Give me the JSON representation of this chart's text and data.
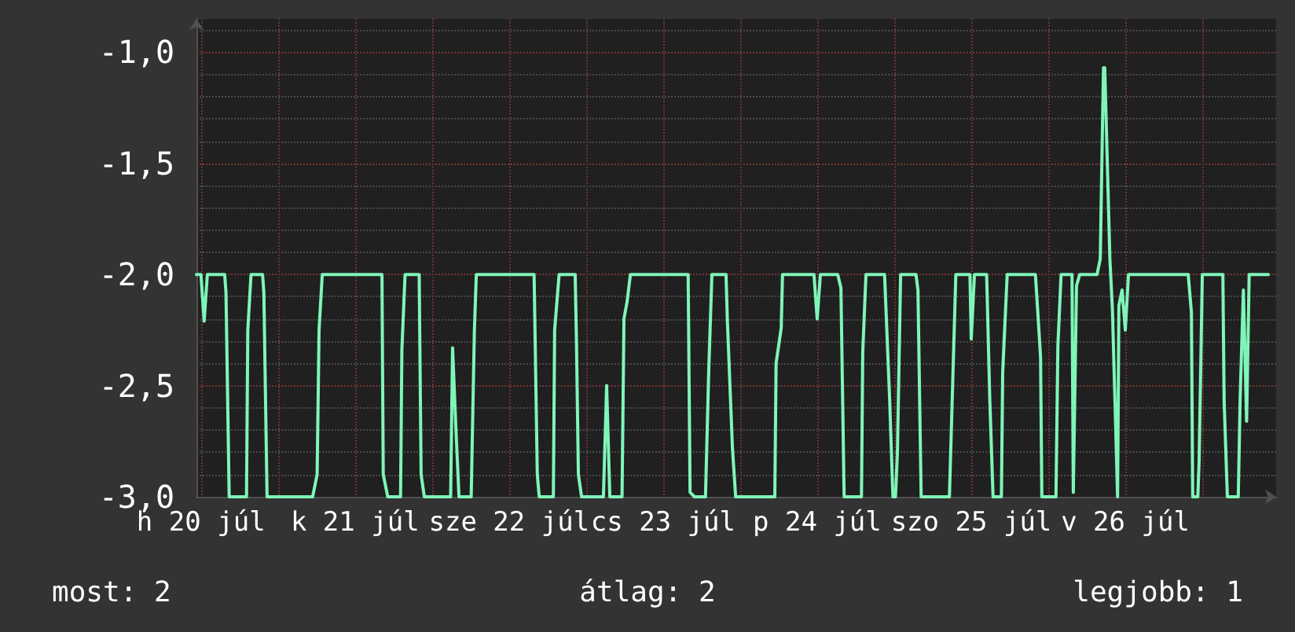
{
  "chart_data": {
    "type": "line",
    "color": "#7ff5b8",
    "marker": "none",
    "line_style": "solid",
    "grid": true,
    "x": [
      "--07-20T11:18",
      "--07-20T12:00",
      "--07-20T12:30",
      "--07-20T13:00",
      "--07-20T15:42",
      "--07-20T15:54",
      "--07-20T16:24",
      "--07-20T19:06",
      "--07-20T19:18",
      "--07-20T19:48",
      "--07-20T21:36",
      "--07-20T21:48",
      "--07-20T22:18",
      "--07-21T05:24",
      "--07-21T06:06",
      "--07-21T06:24",
      "--07-21T06:54",
      "--07-21T16:12",
      "--07-21T16:24",
      "--07-21T17:06",
      "--07-21T19:06",
      "--07-21T19:18",
      "--07-21T19:48",
      "--07-21T22:00",
      "--07-21T22:18",
      "--07-21T22:48",
      "--07-22T02:54",
      "--07-22T03:12",
      "--07-22T03:42",
      "--07-22T04:12",
      "--07-22T06:06",
      "--07-22T06:36",
      "--07-22T06:54",
      "--07-22T15:54",
      "--07-22T16:24",
      "--07-22T16:42",
      "--07-22T18:54",
      "--07-22T19:06",
      "--07-22T19:48",
      "--07-22T22:18",
      "--07-22T22:30",
      "--07-22T22:48",
      "--07-22T23:18",
      "--07-23T02:42",
      "--07-23T03:12",
      "--07-23T03:42",
      "--07-23T05:36",
      "--07-23T05:54",
      "--07-23T06:24",
      "--07-23T06:54",
      "--07-23T15:54",
      "--07-23T16:12",
      "--07-23T16:54",
      "--07-23T18:36",
      "--07-23T19:06",
      "--07-23T19:36",
      "--07-23T21:48",
      "--07-23T22:00",
      "--07-23T22:48",
      "--07-23T23:18",
      "--07-24T05:24",
      "--07-24T05:36",
      "--07-24T06:24",
      "--07-24T06:36",
      "--07-24T11:30",
      "--07-24T12:00",
      "--07-24T12:30",
      "--07-24T15:12",
      "--07-24T15:42",
      "--07-24T16:12",
      "--07-24T18:54",
      "--07-24T19:06",
      "--07-24T19:36",
      "--07-24T22:30",
      "--07-24T23:18",
      "--07-24T23:48",
      "--07-25T00:12",
      "--07-25T00:30",
      "--07-25T01:00",
      "--07-25T03:24",
      "--07-25T03:42",
      "--07-25T04:12",
      "--07-25T08:36",
      "--07-25T09:06",
      "--07-25T09:36",
      "--07-25T11:48",
      "--07-25T12:00",
      "--07-25T12:30",
      "--07-25T14:24",
      "--07-25T14:54",
      "--07-25T15:24",
      "--07-25T16:42",
      "--07-25T16:54",
      "--07-25T17:36",
      "--07-25T22:00",
      "--07-25T22:48",
      "--07-25T23:00",
      "--07-26T01:12",
      "--07-26T01:30",
      "--07-26T02:00",
      "--07-26T03:42",
      "--07-26T03:54",
      "--07-26T04:24",
      "--07-26T04:54",
      "--07-26T07:36",
      "--07-26T08:06",
      "--07-26T08:36",
      "--07-26T08:48",
      "--07-26T09:36",
      "--07-26T10:00",
      "--07-26T10:48",
      "--07-26T11:00",
      "--07-26T11:30",
      "--07-26T12:00",
      "--07-26T12:30",
      "--07-26T21:48",
      "--07-26T22:18",
      "--07-26T22:30",
      "--07-26T23:18",
      "--07-26T23:30",
      "--07-27T00:00",
      "--07-27T03:12",
      "--07-27T03:24",
      "--07-27T03:54",
      "--07-27T05:36",
      "--07-27T05:54",
      "--07-27T06:24",
      "--07-27T06:54",
      "--07-27T07:18",
      "--07-27T10:18"
    ],
    "values": [
      -2.0,
      -2.0,
      -2.21,
      -2.0,
      -2.0,
      -2.08,
      -3.0,
      -3.0,
      -2.25,
      -2.0,
      -2.0,
      -2.08,
      -3.0,
      -3.0,
      -2.9,
      -2.25,
      -2.0,
      -2.0,
      -2.9,
      -3.0,
      -3.0,
      -2.34,
      -2.0,
      -2.0,
      -2.9,
      -3.0,
      -3.0,
      -2.33,
      -2.68,
      -3.0,
      -3.0,
      -2.25,
      -2.0,
      -2.0,
      -2.9,
      -3.0,
      -3.0,
      -2.25,
      -2.0,
      -2.0,
      -2.3,
      -2.9,
      -3.0,
      -3.0,
      -2.5,
      -3.0,
      -3.0,
      -2.2,
      -2.12,
      -2.0,
      -2.0,
      -2.98,
      -3.0,
      -3.0,
      -2.44,
      -2.0,
      -2.0,
      -2.2,
      -2.78,
      -3.0,
      -3.0,
      -2.4,
      -2.24,
      -2.0,
      -2.0,
      -2.2,
      -2.0,
      -2.0,
      -2.06,
      -3.0,
      -3.0,
      -2.35,
      -2.0,
      -2.0,
      -2.57,
      -3.0,
      -3.0,
      -2.8,
      -2.0,
      -2.0,
      -2.07,
      -3.0,
      -3.0,
      -2.5,
      -2.0,
      -2.0,
      -2.29,
      -2.0,
      -2.0,
      -2.57,
      -3.0,
      -3.0,
      -2.44,
      -2.0,
      -2.0,
      -2.37,
      -3.0,
      -3.0,
      -2.32,
      -2.0,
      -2.0,
      -2.98,
      -2.05,
      -2.0,
      -2.0,
      -1.93,
      -1.07,
      -1.07,
      -1.93,
      -2.16,
      -3.0,
      -2.14,
      -2.07,
      -2.25,
      -2.0,
      -2.0,
      -2.17,
      -3.0,
      -3.0,
      -2.84,
      -2.0,
      -2.0,
      -2.57,
      -3.0,
      -3.0,
      -2.55,
      -2.07,
      -2.66,
      -2.0,
      -2.0
    ],
    "xlim": [
      "--07-20T11:18",
      "--07-27T11:30"
    ],
    "xticks": [
      {
        "value": "--07-20T12:00",
        "label": "h 20 júl"
      },
      {
        "value": "--07-21T00:00",
        "label": null
      },
      {
        "value": "--07-21T12:00",
        "label": "k 21 júl"
      },
      {
        "value": "--07-22T00:00",
        "label": null
      },
      {
        "value": "--07-22T12:00",
        "label": "sze 22 júl"
      },
      {
        "value": "--07-23T00:00",
        "label": null
      },
      {
        "value": "--07-23T12:00",
        "label": "cs 23 júl"
      },
      {
        "value": "--07-24T00:00",
        "label": null
      },
      {
        "value": "--07-24T12:00",
        "label": "p 24 júl"
      },
      {
        "value": "--07-25T00:00",
        "label": null
      },
      {
        "value": "--07-25T12:00",
        "label": "szo 25 júl"
      },
      {
        "value": "--07-26T00:00",
        "label": null
      },
      {
        "value": "--07-26T12:00",
        "label": "v 26 júl"
      },
      {
        "value": "--07-27T00:00",
        "label": null
      }
    ],
    "ylim": [
      -3.0,
      -0.85
    ],
    "yticks": [
      {
        "value": -3.0,
        "label": "-3,0"
      },
      {
        "value": -2.5,
        "label": "-2,5"
      },
      {
        "value": -2.0,
        "label": "-2,0"
      },
      {
        "value": -1.5,
        "label": "-1,5"
      },
      {
        "value": -1.0,
        "label": "-1,0"
      }
    ],
    "annotations": [
      "most: 2",
      "átlag: 2",
      "legjobb: 1"
    ]
  }
}
